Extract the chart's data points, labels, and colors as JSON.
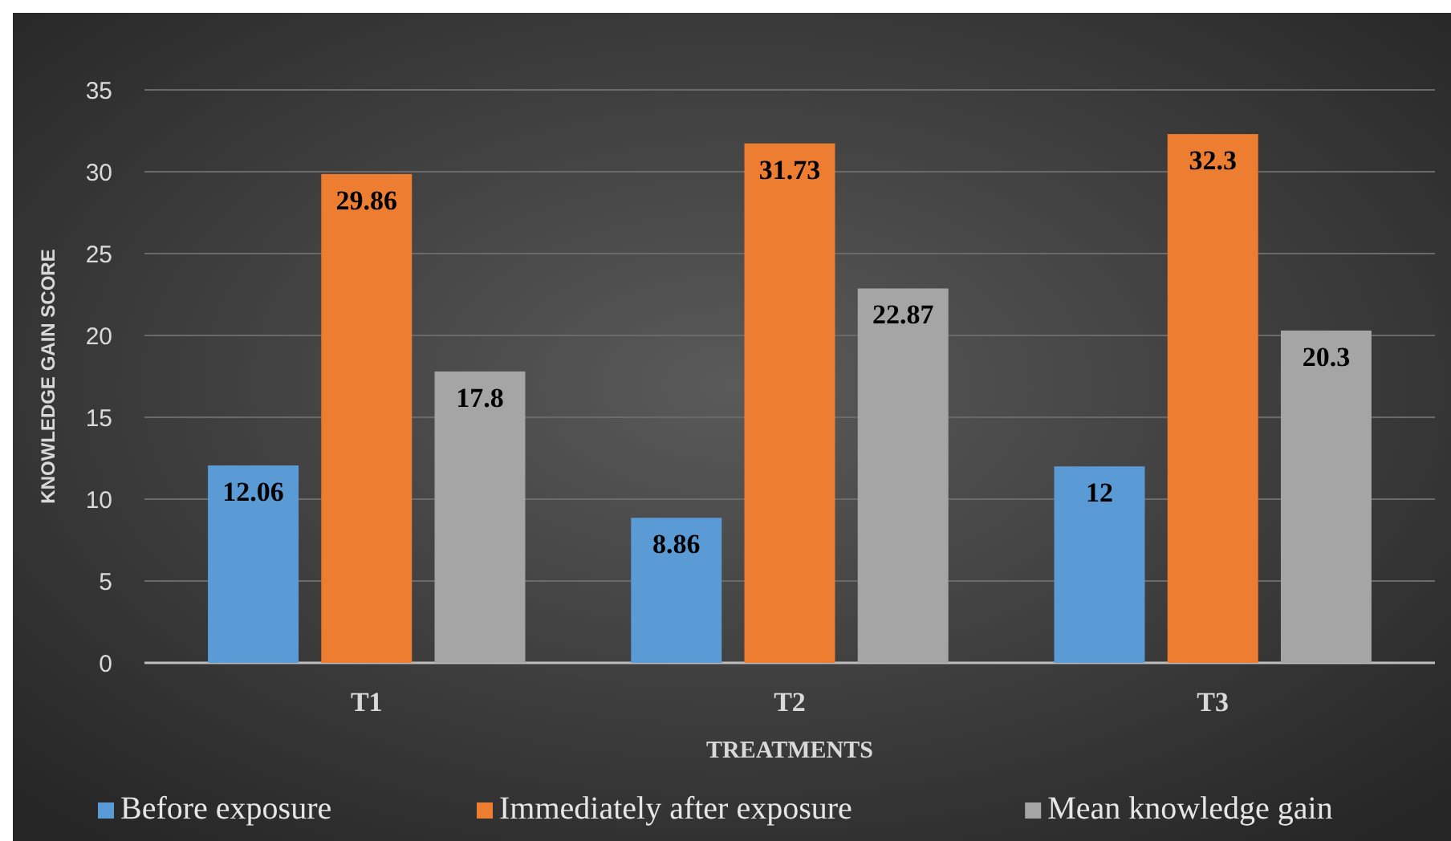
{
  "chart_data": {
    "type": "bar",
    "xlabel": "TREATMENTS",
    "ylabel": "KNOWLEDGE GAIN SCORE",
    "categories": [
      "T1",
      "T2",
      "T3"
    ],
    "series": [
      {
        "name": "Before exposure",
        "color": "#5b9bd5",
        "values": [
          12.06,
          8.86,
          12
        ]
      },
      {
        "name": "Immediately after exposure",
        "color": "#ed7d31",
        "values": [
          29.86,
          31.73,
          32.3
        ]
      },
      {
        "name": "Mean knowledge gain",
        "color": "#a5a5a5",
        "values": [
          17.8,
          22.87,
          20.3
        ]
      }
    ],
    "ylim": [
      0,
      35
    ],
    "yticks": [
      0,
      5,
      10,
      15,
      20,
      25,
      30,
      35
    ],
    "grid": "y",
    "legend": "bottom",
    "data_labels": true
  }
}
